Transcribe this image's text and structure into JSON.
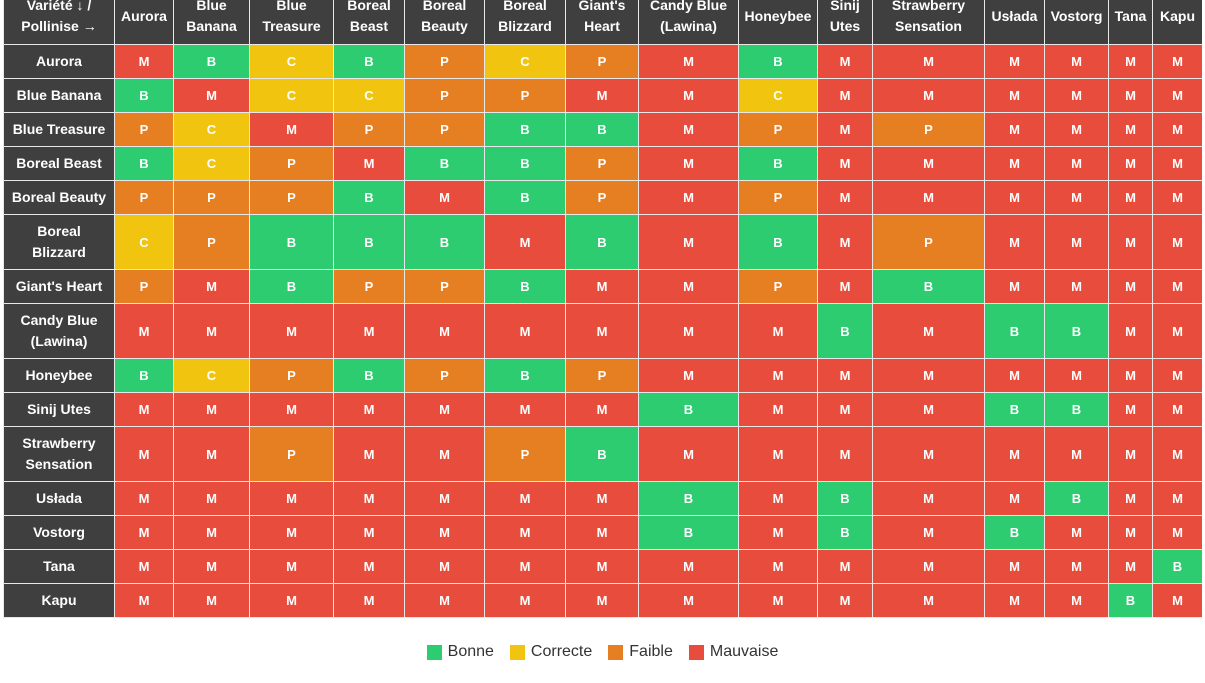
{
  "corner": {
    "line1": "Variété ↓ /",
    "line2": "Pollinise →"
  },
  "columns": [
    {
      "l1": "Aurora"
    },
    {
      "l1": "Blue",
      "l2": "Banana"
    },
    {
      "l1": "Blue",
      "l2": "Treasure"
    },
    {
      "l1": "Boreal",
      "l2": "Beast"
    },
    {
      "l1": "Boreal",
      "l2": "Beauty"
    },
    {
      "l1": "Boreal",
      "l2": "Blizzard"
    },
    {
      "l1": "Giant's",
      "l2": "Heart"
    },
    {
      "l1": "Candy Blue",
      "l2": "(Lawina)"
    },
    {
      "l1": "Honeybee"
    },
    {
      "l1": "Sinij",
      "l2": "Utes"
    },
    {
      "l1": "Strawberry",
      "l2": "Sensation"
    },
    {
      "l1": "Usłada"
    },
    {
      "l1": "Vostorg"
    },
    {
      "l1": "Tana"
    },
    {
      "l1": "Kapu"
    }
  ],
  "rows": [
    {
      "l1": "Aurora",
      "cells": [
        "M",
        "B",
        "C",
        "B",
        "P",
        "C",
        "P",
        "M",
        "B",
        "M",
        "M",
        "M",
        "M",
        "M",
        "M"
      ]
    },
    {
      "l1": "Blue Banana",
      "cells": [
        "B",
        "M",
        "C",
        "C",
        "P",
        "P",
        "M",
        "M",
        "C",
        "M",
        "M",
        "M",
        "M",
        "M",
        "M"
      ]
    },
    {
      "l1": "Blue Treasure",
      "cells": [
        "P",
        "C",
        "M",
        "P",
        "P",
        "B",
        "B",
        "M",
        "P",
        "M",
        "P",
        "M",
        "M",
        "M",
        "M"
      ]
    },
    {
      "l1": "Boreal Beast",
      "cells": [
        "B",
        "C",
        "P",
        "M",
        "B",
        "B",
        "P",
        "M",
        "B",
        "M",
        "M",
        "M",
        "M",
        "M",
        "M"
      ]
    },
    {
      "l1": "Boreal Beauty",
      "cells": [
        "P",
        "P",
        "P",
        "B",
        "M",
        "B",
        "P",
        "M",
        "P",
        "M",
        "M",
        "M",
        "M",
        "M",
        "M"
      ]
    },
    {
      "l1": "Boreal",
      "l2": "Blizzard",
      "cells": [
        "C",
        "P",
        "B",
        "B",
        "B",
        "M",
        "B",
        "M",
        "B",
        "M",
        "P",
        "M",
        "M",
        "M",
        "M"
      ]
    },
    {
      "l1": "Giant's Heart",
      "cells": [
        "P",
        "M",
        "B",
        "P",
        "P",
        "B",
        "M",
        "M",
        "P",
        "M",
        "B",
        "M",
        "M",
        "M",
        "M"
      ]
    },
    {
      "l1": "Candy Blue",
      "l2": "(Lawina)",
      "cells": [
        "M",
        "M",
        "M",
        "M",
        "M",
        "M",
        "M",
        "M",
        "M",
        "B",
        "M",
        "B",
        "B",
        "M",
        "M"
      ]
    },
    {
      "l1": "Honeybee",
      "cells": [
        "B",
        "C",
        "P",
        "B",
        "P",
        "B",
        "P",
        "M",
        "M",
        "M",
        "M",
        "M",
        "M",
        "M",
        "M"
      ]
    },
    {
      "l1": "Sinij Utes",
      "cells": [
        "M",
        "M",
        "M",
        "M",
        "M",
        "M",
        "M",
        "B",
        "M",
        "M",
        "M",
        "B",
        "B",
        "M",
        "M"
      ]
    },
    {
      "l1": "Strawberry",
      "l2": "Sensation",
      "cells": [
        "M",
        "M",
        "P",
        "M",
        "M",
        "P",
        "B",
        "M",
        "M",
        "M",
        "M",
        "M",
        "M",
        "M",
        "M"
      ]
    },
    {
      "l1": "Usłada",
      "cells": [
        "M",
        "M",
        "M",
        "M",
        "M",
        "M",
        "M",
        "B",
        "M",
        "B",
        "M",
        "M",
        "B",
        "M",
        "M"
      ]
    },
    {
      "l1": "Vostorg",
      "cells": [
        "M",
        "M",
        "M",
        "M",
        "M",
        "M",
        "M",
        "B",
        "M",
        "B",
        "M",
        "B",
        "M",
        "M",
        "M"
      ]
    },
    {
      "l1": "Tana",
      "cells": [
        "M",
        "M",
        "M",
        "M",
        "M",
        "M",
        "M",
        "M",
        "M",
        "M",
        "M",
        "M",
        "M",
        "M",
        "B"
      ]
    },
    {
      "l1": "Kapu",
      "cells": [
        "M",
        "M",
        "M",
        "M",
        "M",
        "M",
        "M",
        "M",
        "M",
        "M",
        "M",
        "M",
        "M",
        "B",
        "M"
      ]
    }
  ],
  "legend": [
    {
      "code": "B",
      "label": "Bonne",
      "color": "#2ecc71"
    },
    {
      "code": "C",
      "label": "Correcte",
      "color": "#f1c40f"
    },
    {
      "code": "P",
      "label": "Faible",
      "color": "#e67e22"
    },
    {
      "code": "M",
      "label": "Mauvaise",
      "color": "#e74c3c"
    }
  ]
}
